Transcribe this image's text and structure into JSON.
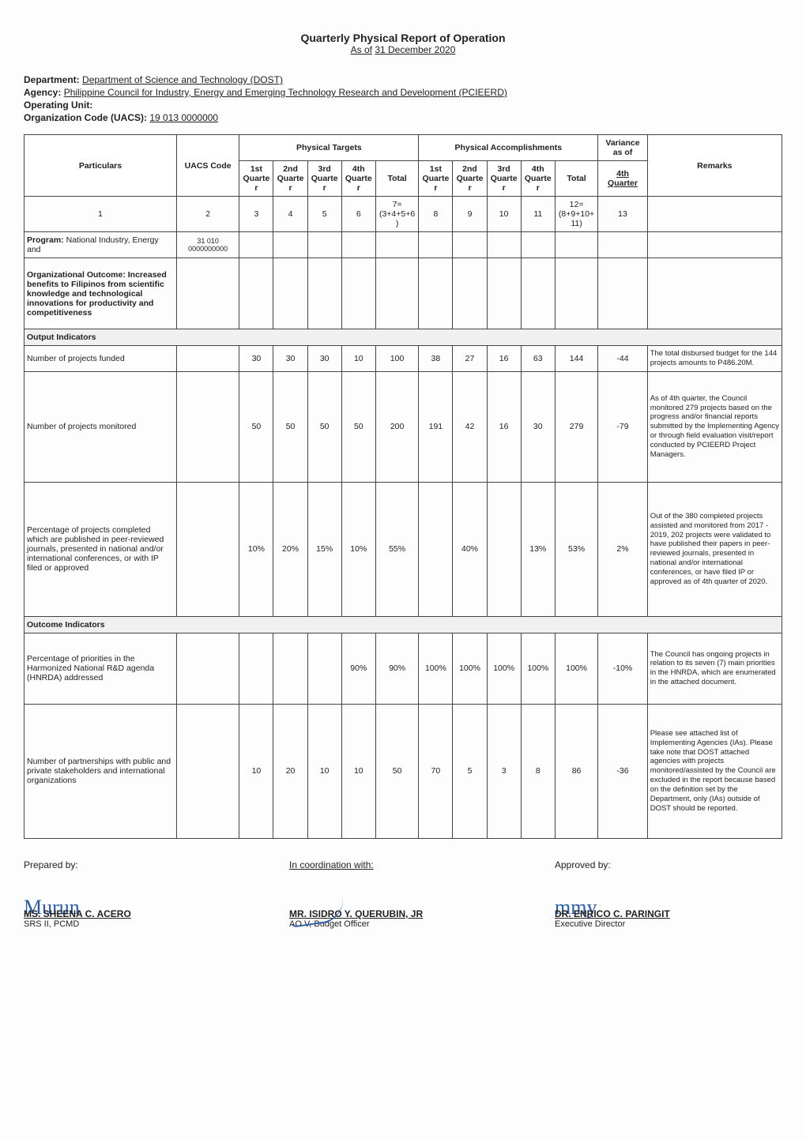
{
  "header": {
    "title": "Quarterly Physical Report of Operation",
    "as_of_label": "As of",
    "as_of_date": "31 December 2020"
  },
  "meta": {
    "department_label": "Department:",
    "department": "Department of Science and Technology (DOST)",
    "agency_label": "Agency:",
    "agency": "Philippine Council for Industry, Energy and Emerging Technology Research and Development (PCIEERD)",
    "operating_unit_label": "Operating Unit:",
    "operating_unit": "",
    "org_code_label": "Organization Code (UACS):",
    "org_code": "19 013 0000000"
  },
  "table": {
    "head": {
      "particulars": "Particulars",
      "uacs": "UACS Code",
      "phys_targets": "Physical Targets",
      "phys_accomp": "Physical Accomplishments",
      "variance": "Variance as of",
      "remarks": "Remarks",
      "q1": "1st Quarter",
      "q2": "2nd Quarter",
      "q3": "3rd Quarter",
      "q4": "4th Quarter",
      "total": "Total",
      "var_q4": "4th Quarter"
    },
    "formula_row": {
      "c1": "1",
      "c2": "2",
      "c3": "3",
      "c4": "4",
      "c5": "5",
      "c6": "6",
      "c7": "7=(3+4+5+6)",
      "c8": "8",
      "c9": "9",
      "c10": "10",
      "c11": "11",
      "c12": "12=(8+9+10+11)",
      "c13": "13"
    },
    "program_row": {
      "label": "Program:",
      "text": " National Industry, Energy and",
      "uacs": "31 010 0000000000"
    },
    "org_outcome": "Organizational Outcome: Increased benefits to Filipinos from scientific knowledge and technological innovations for productivity and competitiveness",
    "output_indicators_label": "Output Indicators",
    "outcome_indicators_label": "Outcome Indicators",
    "rows": [
      {
        "name": "projects-funded",
        "label": "Number of projects funded",
        "t": [
          "30",
          "30",
          "30",
          "10",
          "100"
        ],
        "a": [
          "38",
          "27",
          "16",
          "63",
          "144"
        ],
        "var": "-44",
        "remarks": "The total disbursed budget for the 144 projects amounts to P486.20M."
      },
      {
        "name": "projects-monitored",
        "label": "Number of projects monitored",
        "t": [
          "50",
          "50",
          "50",
          "50",
          "200"
        ],
        "a": [
          "191",
          "42",
          "16",
          "30",
          "279"
        ],
        "var": "-79",
        "remarks": "As of 4th quarter, the Council monitored 279 projects based on the progress and/or financial reports submitted by the Implementing Agency or through field evaluation visit/report conducted by PCIEERD Project Managers."
      },
      {
        "name": "projects-completed-pct",
        "label": "Percentage of projects completed which are published in peer-reviewed journals, presented in national and/or international conferences, or with IP filed or approved",
        "t": [
          "10%",
          "20%",
          "15%",
          "10%",
          "55%"
        ],
        "a": [
          "",
          "40%",
          "",
          "13%",
          "53%"
        ],
        "var": "2%",
        "remarks": "Out of the 380 completed projects assisted and monitored from 2017 - 2019, 202 projects were validated to have published their papers in peer-reviewed journals, presented in national and/or international conferences, or have filed IP or approved as of 4th quarter of 2020."
      }
    ],
    "outcome_rows": [
      {
        "name": "priorities-hnrda",
        "label": "Percentage of priorities in the Harmonized National R&D agenda (HNRDA) addressed",
        "t": [
          "",
          "",
          "",
          "90%",
          "90%"
        ],
        "a": [
          "100%",
          "100%",
          "100%",
          "100%",
          "100%"
        ],
        "var": "-10%",
        "remarks": "The Council has ongoing projects in relation to its seven (7) main priorities in the HNRDA, which are enumerated in the attached document."
      },
      {
        "name": "partnerships",
        "label": "Number of partnerships with public and private stakeholders and international organizations",
        "t": [
          "10",
          "20",
          "10",
          "10",
          "50"
        ],
        "a": [
          "70",
          "5",
          "3",
          "8",
          "86"
        ],
        "var": "-36",
        "remarks": "Please see attached list of Implementing Agencies (IAs). Please take note that DOST attached agencies with projects monitored/assisted by the Council are excluded in the report because based on the definition set by the Department, only (IAs) outside of DOST should be reported."
      }
    ]
  },
  "signatures": {
    "prepared_label": "Prepared by:",
    "prepared_name": "MS. SHEENA C. ACERO",
    "prepared_title": "SRS II, PCMD",
    "coord_label": "In coordination with:",
    "coord_name": "MR. ISIDRO Y. QUERUBIN, JR",
    "coord_title": "AO V, Budget Officer",
    "approved_label": "Approved by:",
    "approved_name": "DR. ENRICO C. PARINGIT",
    "approved_title": "Executive Director"
  }
}
